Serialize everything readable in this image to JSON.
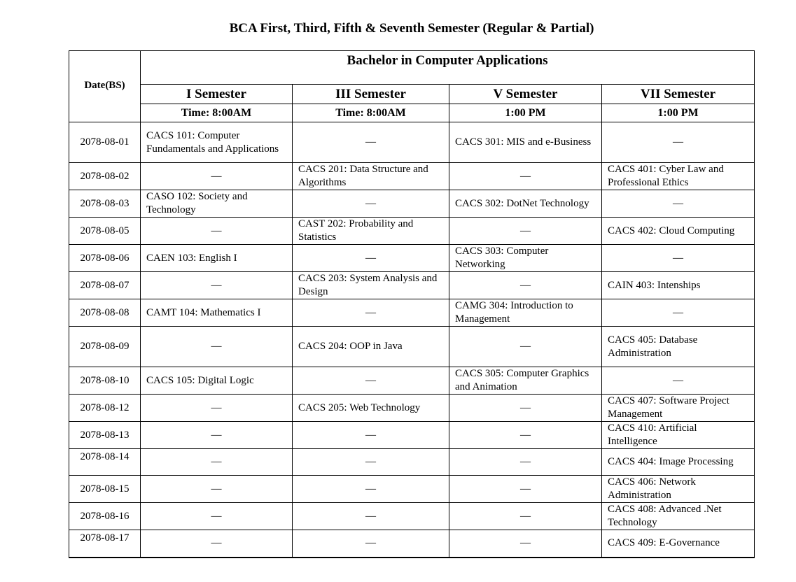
{
  "title": "BCA First, Third, Fifth & Seventh Semester (Regular & Partial)",
  "header": {
    "date_label": "Date(BS)",
    "program": "Bachelor in Computer Applications",
    "semesters": [
      {
        "name": "I Semester",
        "time": "Time: 8:00AM"
      },
      {
        "name": "III Semester",
        "time": "Time: 8:00AM"
      },
      {
        "name": "V Semester",
        "time": "1:00 PM"
      },
      {
        "name": "VII Semester",
        "time": "1:00 PM"
      }
    ]
  },
  "rows": [
    {
      "date": "2078-08-01",
      "cells": [
        "CACS 101: Computer Fundamentals and Applications",
        "—",
        "CACS 301: MIS and e-Business",
        "—"
      ]
    },
    {
      "date": "2078-08-02",
      "cells": [
        "—",
        "CACS 201: Data Structure and Algorithms",
        "—",
        "CACS 401: Cyber Law and Professional Ethics"
      ]
    },
    {
      "date": "2078-08-03",
      "cells": [
        "CASO 102: Society and Technology",
        "—",
        "CACS 302: DotNet Technology",
        "—"
      ]
    },
    {
      "date": "2078-08-05",
      "cells": [
        "—",
        "CAST 202: Probability and Statistics",
        "—",
        "CACS 402: Cloud Computing"
      ]
    },
    {
      "date": "2078-08-06",
      "cells": [
        "CAEN 103: English I",
        "—",
        "CACS 303: Computer Networking",
        "—"
      ]
    },
    {
      "date": "2078-08-07",
      "cells": [
        "—",
        "CACS 203: System Analysis and Design",
        "—",
        "CAIN 403: Intenships"
      ]
    },
    {
      "date": "2078-08-08",
      "cells": [
        "CAMT 104: Mathematics I",
        "—",
        "CAMG 304: Introduction to Management",
        "—"
      ]
    },
    {
      "date": "2078-08-09",
      "cells": [
        "—",
        "CACS 204: OOP in Java",
        "—",
        "CACS 405: Database Administration"
      ]
    },
    {
      "date": "2078-08-10",
      "cells": [
        "CACS 105: Digital Logic",
        "—",
        "CACS 305: Computer Graphics and Animation",
        "—"
      ]
    },
    {
      "date": "2078-08-12",
      "cells": [
        "—",
        "CACS 205: Web Technology",
        "—",
        "CACS 407: Software Project Management"
      ]
    },
    {
      "date": "2078-08-13",
      "cells": [
        "—",
        "—",
        "—",
        "CACS 410: Artificial Intelligence"
      ]
    },
    {
      "date": "2078-08-14",
      "cells": [
        "—",
        "—",
        "—",
        "CACS 404: Image Processing"
      ]
    },
    {
      "date": "2078-08-15",
      "cells": [
        "—",
        "—",
        "—",
        "CACS 406: Network Administration"
      ]
    },
    {
      "date": "2078-08-16",
      "cells": [
        "—",
        "—",
        "—",
        "CACS 408: Advanced .Net Technology"
      ]
    },
    {
      "date": "2078-08-17",
      "cells": [
        "—",
        "—",
        "—",
        "CACS 409: E-Governance"
      ]
    }
  ]
}
